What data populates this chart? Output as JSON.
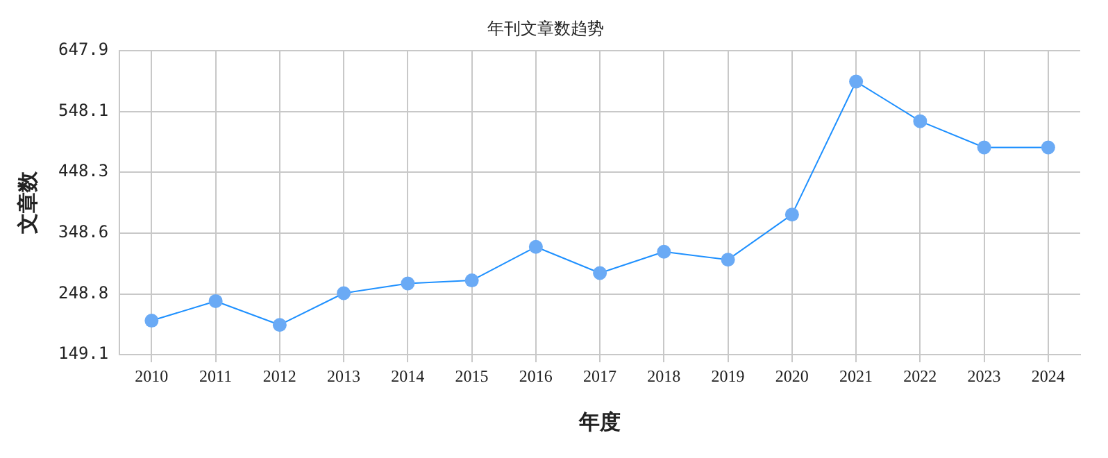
{
  "chart_data": {
    "type": "line",
    "title": "年刊文章数趋势",
    "xlabel": "年度",
    "ylabel": "文章数",
    "categories": [
      "2010",
      "2011",
      "2012",
      "2013",
      "2014",
      "2015",
      "2016",
      "2017",
      "2018",
      "2019",
      "2020",
      "2021",
      "2022",
      "2023",
      "2024"
    ],
    "series": [
      {
        "color": "#1e90ff",
        "values": [
          205,
          237,
          198,
          250,
          266,
          271,
          326,
          283,
          318,
          305,
          379,
          597,
          532,
          489,
          489
        ]
      }
    ],
    "ylim": [
      149.1,
      647.9
    ],
    "yticks": [
      149.1,
      248.8,
      348.6,
      448.3,
      548.1,
      647.9
    ],
    "grid": true,
    "marker": "circle",
    "line_style": "solid",
    "legend": false
  }
}
